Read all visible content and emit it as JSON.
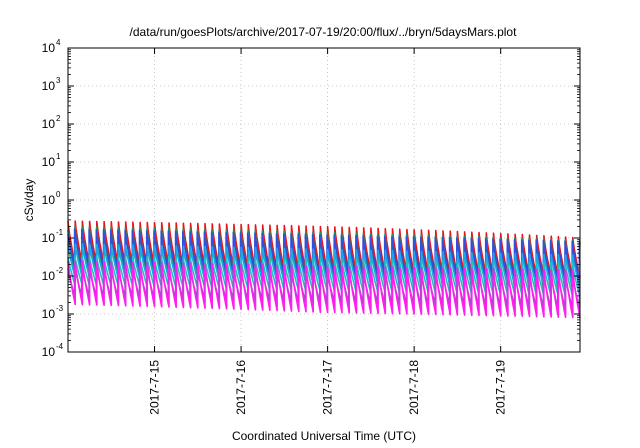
{
  "chart_data": {
    "type": "line",
    "title": "/data/run/goesPlots/archive/2017-07-19/20:00/flux/../bryn/5daysMars.plot",
    "xlabel": "Coordinated Universal Time (UTC)",
    "ylabel": "cSv/day",
    "yscale": "log",
    "ylim": [
      0.0001,
      10000
    ],
    "xlim": [
      "2017-07-14 00:00",
      "2017-07-19 22:00"
    ],
    "x_ticks": [
      "2017-7-15",
      "2017-7-16",
      "2017-7-17",
      "2017-7-18",
      "2017-7-19"
    ],
    "y_ticks": [
      {
        "base": "10",
        "exp": "-4",
        "value": 0.0001
      },
      {
        "base": "10",
        "exp": "-3",
        "value": 0.001
      },
      {
        "base": "10",
        "exp": "-2",
        "value": 0.01
      },
      {
        "base": "10",
        "exp": "-1",
        "value": 0.1
      },
      {
        "base": "10",
        "exp": "0",
        "value": 1
      },
      {
        "base": "10",
        "exp": "1",
        "value": 10
      },
      {
        "base": "10",
        "exp": "2",
        "value": 100
      },
      {
        "base": "10",
        "exp": "3",
        "value": 1000
      },
      {
        "base": "10",
        "exp": "4",
        "value": 10000
      }
    ],
    "grid": true,
    "sawtooth_period_hours": 2,
    "series": [
      {
        "color": "#e8141c",
        "peak": [
          0.28,
          0.2,
          0.1
        ],
        "trough": [
          0.02,
          0.012,
          0.009
        ]
      },
      {
        "color": "#1e9b4a",
        "peak": [
          0.2,
          0.14,
          0.085
        ],
        "trough": [
          0.01,
          0.006,
          0.004
        ]
      },
      {
        "color": "#2f4fe0",
        "peak": [
          0.17,
          0.12,
          0.08
        ],
        "trough": [
          0.018,
          0.011,
          0.008
        ]
      },
      {
        "color": "#1aa7e6",
        "peak": [
          0.07,
          0.05,
          0.035
        ],
        "trough": [
          0.009,
          0.006,
          0.005
        ]
      },
      {
        "color": "#1ec0c0",
        "peak": [
          0.035,
          0.028,
          0.022
        ],
        "trough": [
          0.006,
          0.004,
          0.003
        ]
      },
      {
        "color": "#9a4fc7",
        "peak": [
          0.02,
          0.016,
          0.013
        ],
        "trough": [
          0.003,
          0.002,
          0.0014
        ]
      },
      {
        "color": "#ff1ef0",
        "peak": [
          0.025,
          0.018,
          0.014
        ],
        "trough": [
          0.0018,
          0.0011,
          0.0008
        ]
      }
    ]
  }
}
